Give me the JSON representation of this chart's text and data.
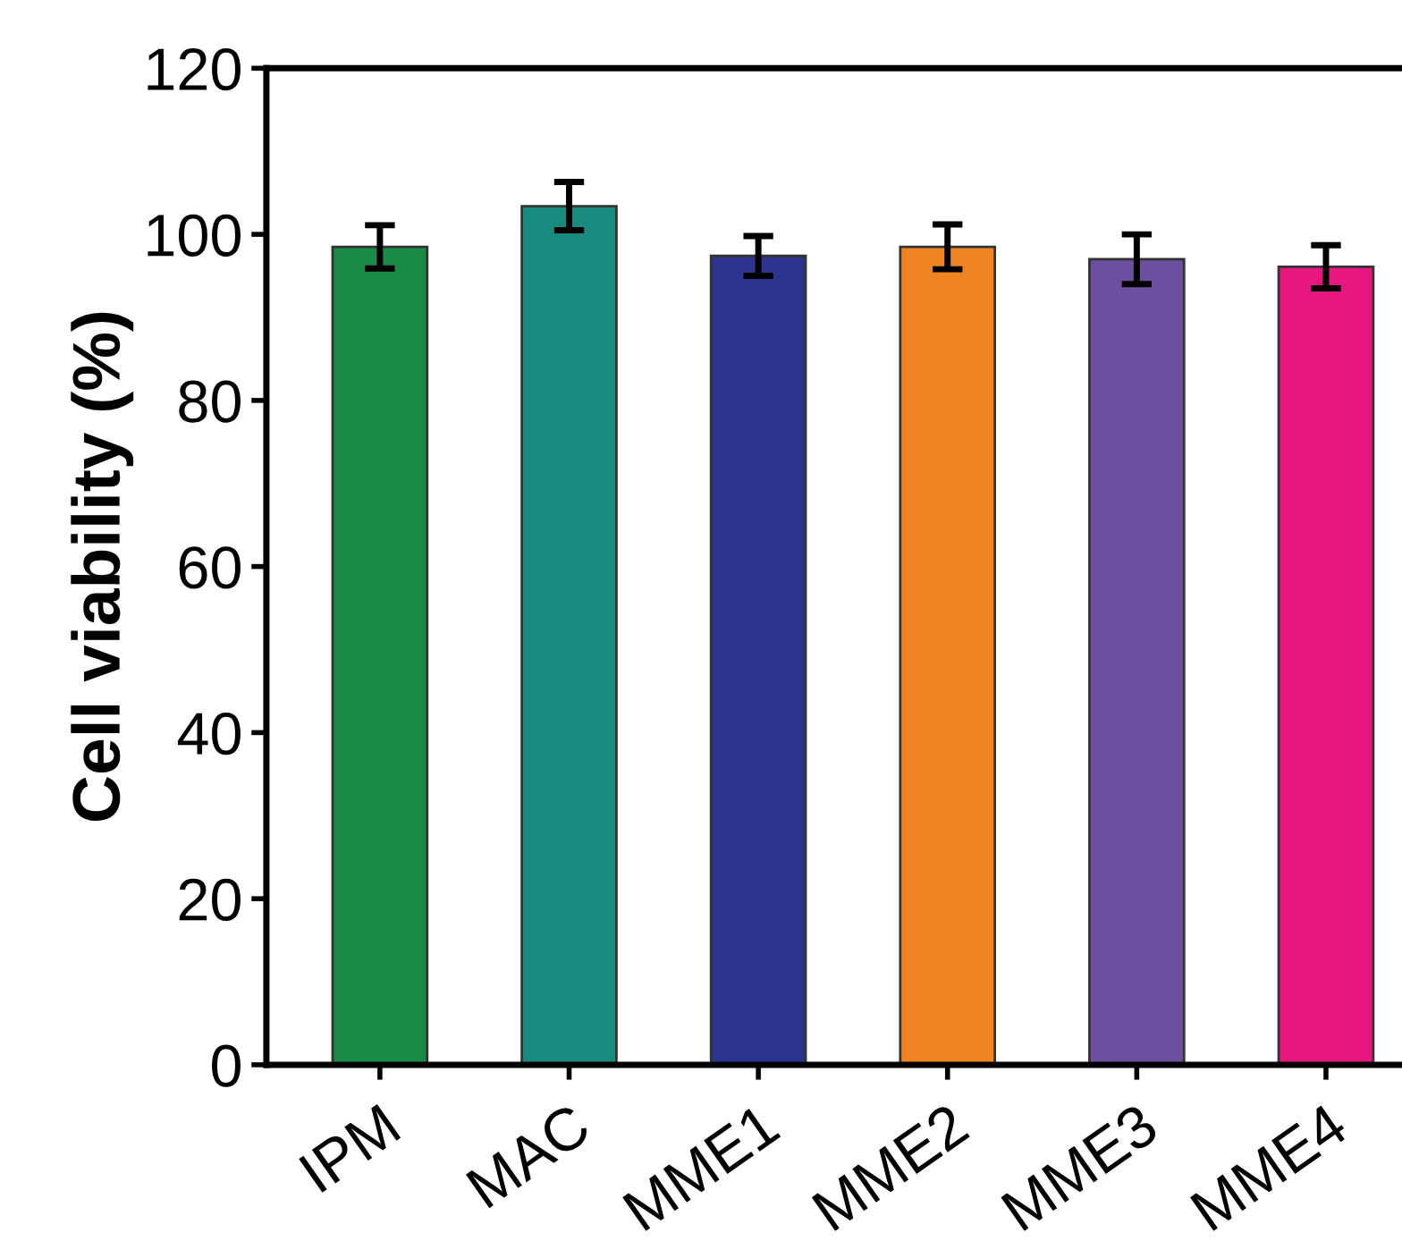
{
  "chart_data": {
    "type": "bar",
    "ylabel": "Cell viability (%)",
    "categories": [
      "IPM",
      "MAC",
      "MME1",
      "MME2",
      "MME3",
      "MME4"
    ],
    "values": [
      98.5,
      103.4,
      97.4,
      98.5,
      97.0,
      96.1
    ],
    "errors": [
      2.6,
      2.9,
      2.4,
      2.7,
      3.0,
      2.6
    ],
    "colors": [
      "#1a8a47",
      "#198a80",
      "#2b3590",
      "#f08423",
      "#6c4f9f",
      "#e8177f"
    ],
    "ylim": [
      0,
      120
    ],
    "yticks": [
      0,
      20,
      40,
      60,
      80,
      100,
      120
    ],
    "grid": false
  }
}
